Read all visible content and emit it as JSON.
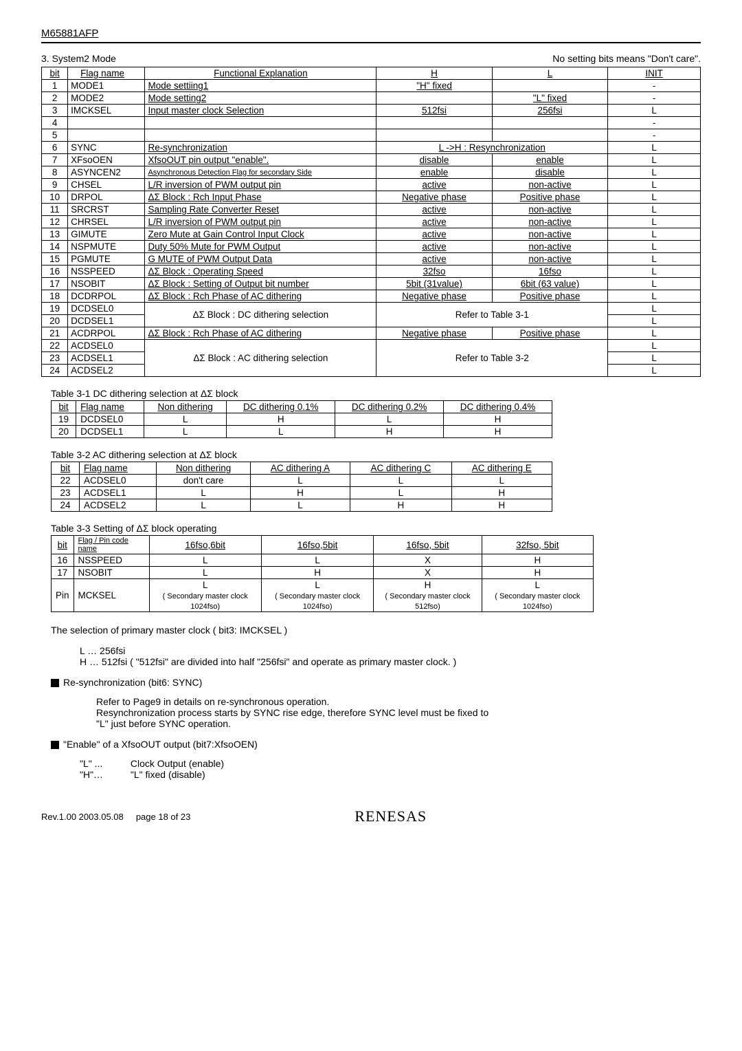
{
  "part_number": "M65881AFP",
  "section_title": "3. System2 Mode",
  "note_right": "No setting bits means \"Don't care\".",
  "main_headers": [
    "bit",
    "Flag name",
    "Functional Explanation",
    "H",
    "L",
    "INIT"
  ],
  "main_rows": [
    {
      "bit": "1",
      "flag": "MODE1",
      "func": "Mode settiing1",
      "h": "\"H\" fixed",
      "l": "",
      "init": "-"
    },
    {
      "bit": "2",
      "flag": "MODE2",
      "func": "Mode setting2",
      "h": "",
      "l": "\"L\" fixed",
      "init": "-"
    },
    {
      "bit": "3",
      "flag": "IMCKSEL",
      "func": "Input master clock Selection",
      "h": "512fsi",
      "l": "256fsi",
      "init": "L"
    },
    {
      "bit": "4",
      "flag": "",
      "func": "",
      "h": "",
      "l": "",
      "init": "-"
    },
    {
      "bit": "5",
      "flag": "",
      "func": "",
      "h": "",
      "l": "",
      "init": "-"
    },
    {
      "bit": "6",
      "flag": "SYNC",
      "func": "Re-synchronization",
      "hl": "L ->H : Resynchronization",
      "init": "L"
    },
    {
      "bit": "7",
      "flag": "XFsoOEN",
      "func": "XfsoOUT pin output \"enable\".",
      "h": "disable",
      "l": "enable",
      "init": "L"
    },
    {
      "bit": "8",
      "flag": "ASYNCEN2",
      "func": "Asynchronous Detection Flag for secondary Side",
      "func_small": true,
      "h": "enable",
      "l": "disable",
      "init": "L"
    },
    {
      "bit": "9",
      "flag": "CHSEL",
      "func": "L/R inversion of PWM output pin",
      "h": "active",
      "l": "non-active",
      "init": "L"
    },
    {
      "bit": "10",
      "flag": "DRPOL",
      "func": "ΔΣ Block : Rch Input Phase",
      "h": "Negative phase",
      "l": "Positive phase",
      "init": "L"
    },
    {
      "bit": "11",
      "flag": "SRCRST",
      "func": "Sampling Rate Converter Reset",
      "h": "active",
      "l": "non-active",
      "init": "L"
    },
    {
      "bit": "12",
      "flag": "CHRSEL",
      "func": "L/R inversion of PWM output pin",
      "h": "active",
      "l": "non-active",
      "init": "L"
    },
    {
      "bit": "13",
      "flag": "GIMUTE",
      "func": "Zero Mute at Gain Control Input Clock",
      "h": "active",
      "l": "non-active",
      "init": "L"
    },
    {
      "bit": "14",
      "flag": "NSPMUTE",
      "func": "Duty 50% Mute for PWM Output",
      "h": "active",
      "l": "non-active",
      "init": "L"
    },
    {
      "bit": "15",
      "flag": "PGMUTE",
      "func": "G  MUTE of PWM Output Data",
      "h": "active",
      "l": "non-active",
      "init": "L"
    },
    {
      "bit": "16",
      "flag": "NSSPEED",
      "func": "ΔΣ Block : Operating Speed",
      "h": "32fso",
      "l": "16fso",
      "init": "L"
    },
    {
      "bit": "17",
      "flag": "NSOBIT",
      "func": "ΔΣ Block : Setting of Output bit number",
      "h": "5bit (31value)",
      "l": "6bit (63 value)",
      "init": "L"
    },
    {
      "bit": "18",
      "flag": "DCDRPOL",
      "func": "ΔΣ Block : Rch Phase of AC dithering",
      "h": "Negative phase",
      "l": "Positive phase",
      "init": "L"
    }
  ],
  "row19": {
    "bit": "19",
    "flag": "DCDSEL0",
    "init": "L"
  },
  "row20": {
    "bit": "20",
    "flag": "DCDSEL1",
    "init": "L"
  },
  "dc_sel_func": "ΔΣ Block : DC dithering selection",
  "dc_sel_ref": "Refer to Table 3-1",
  "row21": {
    "bit": "21",
    "flag": "ACDRPOL",
    "func": "ΔΣ Block : Rch Phase of AC dithering",
    "h": "Negative phase",
    "l": "Positive phase",
    "init": "L"
  },
  "row22": {
    "bit": "22",
    "flag": "ACDSEL0",
    "init": "L"
  },
  "row23": {
    "bit": "23",
    "flag": "ACDSEL1",
    "init": "L"
  },
  "row24": {
    "bit": "24",
    "flag": "ACDSEL2",
    "init": "L"
  },
  "ac_sel_func": "ΔΣ Block : AC dithering selection",
  "ac_sel_ref": "Refer to Table 3-2",
  "t31_caption": "Table 3-1 DC dithering selection at ΔΣ block",
  "t31_headers": [
    "bit",
    "Flag name",
    "Non dithering",
    "DC dithering 0.1%",
    "DC dithering 0.2%",
    "DC dithering 0.4%"
  ],
  "t31_rows": [
    [
      "19",
      "DCDSEL0",
      "L",
      "H",
      "L",
      "H"
    ],
    [
      "20",
      "DCDSEL1",
      "L",
      "L",
      "H",
      "H"
    ]
  ],
  "t32_caption": "Table 3-2 AC dithering selection at ΔΣ block",
  "t32_headers": [
    "bit",
    "Flag name",
    "Non dithering",
    "AC dithering A",
    "AC dithering C",
    "AC dithering E"
  ],
  "t32_rows": [
    [
      "22",
      "ACDSEL0",
      "don't care",
      "L",
      "L",
      "L"
    ],
    [
      "23",
      "ACDSEL1",
      "L",
      "H",
      "L",
      "H"
    ],
    [
      "24",
      "ACDSEL2",
      "L",
      "L",
      "H",
      "H"
    ]
  ],
  "t33_caption": "Table 3-3 Setting of ΔΣ block operating",
  "t33_headers": [
    "bit",
    "Flag / Pin code name",
    "16fso,6bit",
    "16fso,5bit",
    "16fso, 5bit",
    "32fso, 5bit"
  ],
  "t33_rows": [
    [
      "16",
      "NSSPEED",
      "L",
      "L",
      "X",
      "H"
    ],
    [
      "17",
      "NSOBIT",
      "L",
      "H",
      "X",
      "H"
    ]
  ],
  "t33_pin_row": {
    "c0": "Pin",
    "c1": "MCKSEL",
    "c2_top": "L",
    "c2_bot": "( Secondary master clock 1024fso)",
    "c3_top": "L",
    "c3_bot": "( Secondary master clock 1024fso)",
    "c4_top": "H",
    "c4_bot": "( Secondary master clock 512fso)",
    "c5_top": "L",
    "c5_bot": "( Secondary master clock 1024fso)"
  },
  "para1": "The selection of primary master clock  ( bit3: IMCKSEL )",
  "para1_l": "L …  256fsi",
  "para1_h": "H … 512fsi    ( \"512fsi\" are divided into half \"256fsi\" and operate as primary master clock. )",
  "b1_title": "Re-synchronization (bit6: SYNC)",
  "b1_l1": "Refer to Page9  in details on re-synchronous operation.",
  "b1_l2": "Resynchronization process starts by SYNC rise edge, therefore SYNC level must be fixed to",
  "b1_l3": "\"L\" just before SYNC operation.",
  "b2_title": "\"Enable\" of a XfsoOUT output (bit7:XfsoOEN)",
  "b2_l": "\"L\" ...",
  "b2_l_desc": "Clock Output (enable)",
  "b2_h": "\"H\"…",
  "b2_h_desc": "\"L\" fixed (disable)",
  "footer_left": "Rev.1.00  2003.05.08",
  "footer_page": "page 18 of 23",
  "logo": "RENESAS"
}
